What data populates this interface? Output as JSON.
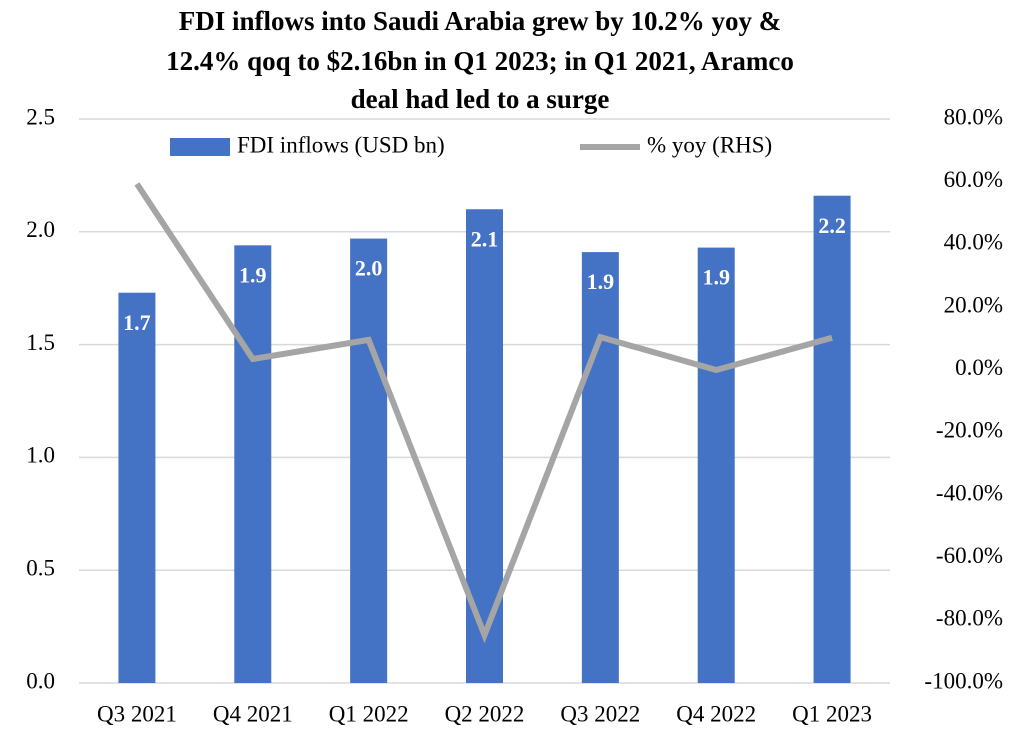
{
  "chart_data": {
    "type": "bar",
    "title": [
      "FDI inflows into Saudi Arabia grew by 10.2% yoy &",
      "12.4% qoq to $2.16bn in Q1 2023; in Q1 2021, Aramco",
      "deal had led to a surge"
    ],
    "categories": [
      "Q3 2021",
      "Q4 2021",
      "Q1 2022",
      "Q2 2022",
      "Q3 2022",
      "Q4 2022",
      "Q1 2023"
    ],
    "series": [
      {
        "name": "FDI inflows (USD bn)",
        "color": "#4472c4",
        "type": "bar",
        "values": [
          1.73,
          1.94,
          1.97,
          2.1,
          1.91,
          1.93,
          2.16
        ],
        "value_labels": [
          "1.7",
          "1.9",
          "2.0",
          "2.1",
          "1.9",
          "1.9",
          "2.2"
        ]
      },
      {
        "name": "% yoy (RHS)",
        "color": "#a5a5a5",
        "type": "line",
        "axis": "y2",
        "values": [
          59.3,
          3.4,
          9.5,
          -84.7,
          10.4,
          -0.1,
          10.2
        ]
      }
    ],
    "ylim": [
      0,
      2.5
    ],
    "yticks": [
      {
        "value": 0,
        "label": "0.0"
      },
      0.5,
      {
        "value": 1,
        "label": "1.0"
      },
      1.5,
      {
        "value": 2,
        "label": "2.0"
      },
      2.5
    ],
    "y2lim": [
      -100,
      80
    ],
    "y2ticks": [
      {
        "value": -100,
        "label": "-100.0%"
      },
      {
        "value": -80,
        "label": "-80.0%"
      },
      {
        "value": -60,
        "label": "-60.0%"
      },
      {
        "value": -40,
        "label": "-40.0%"
      },
      {
        "value": -20,
        "label": "-20.0%"
      },
      {
        "value": 0,
        "label": "0.0%"
      },
      {
        "value": 20,
        "label": "20.0%"
      },
      {
        "value": 40,
        "label": "40.0%"
      },
      {
        "value": 60,
        "label": "60.0%"
      },
      {
        "value": 80,
        "label": "80.0%"
      }
    ],
    "grid": true,
    "legend": "top"
  }
}
